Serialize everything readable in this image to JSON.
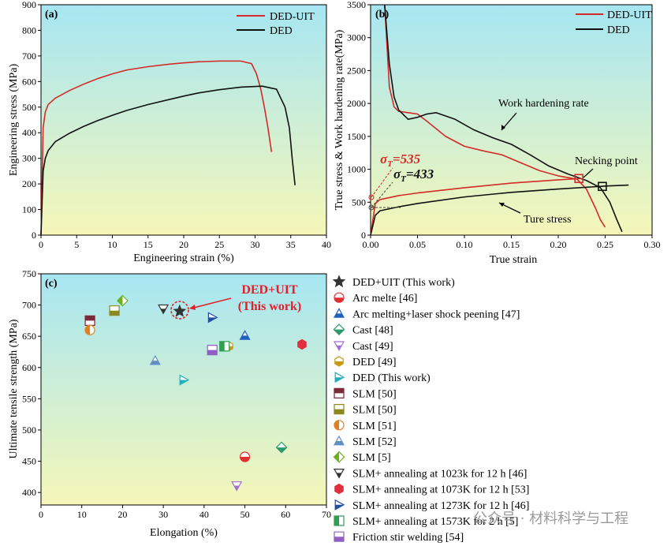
{
  "chart_data": [
    {
      "panel": "(a)",
      "type": "line",
      "xlabel": "Engineering strain (%)",
      "ylabel": "Engineering stress (MPa)",
      "xlim": [
        0,
        40
      ],
      "ylim": [
        0,
        900
      ],
      "xticks": [
        0,
        5,
        10,
        15,
        20,
        25,
        30,
        35,
        40
      ],
      "yticks": [
        0,
        100,
        200,
        300,
        400,
        500,
        600,
        700,
        800,
        900
      ],
      "legend": "top-right",
      "series": [
        {
          "name": "DED-UIT",
          "color": "#d42a2a",
          "x": [
            0,
            0.3,
            0.6,
            1,
            2,
            4,
            6,
            8,
            10,
            12,
            15,
            18,
            20,
            22,
            25,
            28,
            29.5,
            30.2,
            30.8,
            31.3,
            31.8,
            32.3
          ],
          "y": [
            0,
            420,
            480,
            510,
            535,
            565,
            590,
            612,
            630,
            645,
            658,
            668,
            673,
            677,
            680,
            680,
            670,
            630,
            570,
            500,
            420,
            325
          ]
        },
        {
          "name": "DED",
          "color": "#111111",
          "x": [
            0,
            0.3,
            0.6,
            1,
            2,
            4,
            6,
            8,
            10,
            12,
            15,
            18,
            20,
            22,
            25,
            28,
            31,
            33,
            34.2,
            34.8,
            35.2,
            35.6
          ],
          "y": [
            0,
            250,
            300,
            330,
            365,
            398,
            425,
            448,
            468,
            487,
            510,
            530,
            543,
            555,
            568,
            578,
            582,
            570,
            500,
            420,
            300,
            195
          ]
        }
      ]
    },
    {
      "panel": "(b)",
      "type": "line",
      "xlabel": "True strain",
      "ylabel": "True stress & Work hardening rate(MPa)",
      "xlim": [
        0,
        0.3
      ],
      "ylim": [
        0,
        3500
      ],
      "xticks": [
        "0.00",
        "0.05",
        "0.10",
        "0.15",
        "0.20",
        "0.25",
        "0.30"
      ],
      "yticks": [
        0,
        500,
        1000,
        1500,
        2000,
        2500,
        3000,
        3500
      ],
      "legend": "top-right",
      "series": [
        {
          "name": "DED-UIT",
          "color": "#d42a2a",
          "x": [
            0.015,
            0.02,
            0.025,
            0.03,
            0.04,
            0.05,
            0.06,
            0.08,
            0.1,
            0.12,
            0.14,
            0.16,
            0.18,
            0.2,
            0.22,
            0.23,
            0.24,
            0.245,
            0.25
          ],
          "y": [
            3500,
            2250,
            1950,
            1880,
            1860,
            1840,
            1730,
            1500,
            1350,
            1280,
            1220,
            1100,
            980,
            900,
            850,
            700,
            400,
            230,
            120
          ]
        },
        {
          "name": "DED",
          "color": "#111111",
          "x": [
            0.015,
            0.02,
            0.025,
            0.03,
            0.04,
            0.05,
            0.06,
            0.07,
            0.09,
            0.11,
            0.13,
            0.15,
            0.17,
            0.19,
            0.21,
            0.23,
            0.245,
            0.255,
            0.262,
            0.268
          ],
          "y": [
            3500,
            2600,
            2100,
            1900,
            1760,
            1790,
            1840,
            1860,
            1760,
            1600,
            1480,
            1380,
            1220,
            1050,
            930,
            830,
            720,
            500,
            250,
            50
          ]
        },
        {
          "color": "#d42a2a",
          "x": [
            0,
            0.005,
            0.01,
            0.03,
            0.05,
            0.1,
            0.15,
            0.2,
            0.225
          ],
          "y": [
            0,
            480,
            540,
            600,
            640,
            720,
            790,
            840,
            860
          ]
        },
        {
          "color": "#111111",
          "x": [
            0,
            0.005,
            0.01,
            0.03,
            0.05,
            0.1,
            0.15,
            0.2,
            0.25,
            0.275
          ],
          "y": [
            0,
            300,
            370,
            430,
            480,
            580,
            650,
            700,
            745,
            760
          ]
        }
      ],
      "markers": [
        {
          "x": 0.222,
          "y": 860,
          "color": "#d42a2a"
        },
        {
          "x": 0.247,
          "y": 740,
          "color": "#111111"
        }
      ],
      "sigma_labels": [
        {
          "symbol": "σ",
          "sub": "T",
          "value": "=535",
          "color": "#d42a2a"
        },
        {
          "symbol": "σ",
          "sub": "T",
          "value": "=433",
          "color": "#111111"
        }
      ],
      "annotations": [
        "Work hardening rate",
        "Necking point",
        "Ture stress"
      ]
    },
    {
      "panel": "(c)",
      "type": "scatter",
      "xlabel": "Elongation (%)",
      "ylabel": "Ultimate tensile strength (MPa)",
      "xlim": [
        0,
        70
      ],
      "ylim": [
        380,
        750
      ],
      "xticks": [
        0,
        10,
        20,
        30,
        40,
        50,
        60,
        70
      ],
      "yticks": [
        400,
        450,
        500,
        550,
        600,
        650,
        700,
        750
      ],
      "callout": [
        "DED+UIT",
        "(This work)"
      ],
      "legend": "right",
      "series": [
        {
          "name": "DED+UIT (This work)",
          "marker": "star",
          "color": "#333333",
          "points": [
            [
              34,
              690
            ]
          ]
        },
        {
          "name": "Arc melte [46]",
          "marker": "circle-half-bottom",
          "color": "#e03030",
          "points": [
            [
              50,
              457
            ]
          ]
        },
        {
          "name": "Arc melting+laser shock peening [47]",
          "marker": "triangle-half",
          "color": "#2060c0",
          "points": [
            [
              50,
              651
            ]
          ]
        },
        {
          "name": "Cast [48]",
          "marker": "diamond-half",
          "color": "#2a9a6a",
          "points": [
            [
              59,
              472
            ]
          ]
        },
        {
          "name": "Cast [49]",
          "marker": "triangle-down-half",
          "color": "#a070d0",
          "points": [
            [
              48,
              411
            ]
          ]
        },
        {
          "name": "DED [49]",
          "marker": "hexagon-half",
          "color": "#c89a10",
          "points": [
            [
              46,
              634
            ]
          ]
        },
        {
          "name": "DED (This work)",
          "marker": "triangle-right-half",
          "color": "#20b0c0",
          "points": [
            [
              35,
              580
            ]
          ]
        },
        {
          "name": "SLM [50]",
          "marker": "square-half-top",
          "color": "#7a2a3a",
          "points": [
            [
              12,
              675
            ]
          ]
        },
        {
          "name": "SLM [50]",
          "marker": "square-half-bottom",
          "color": "#8a8a20",
          "points": [
            [
              18,
              691
            ]
          ]
        },
        {
          "name": "SLM [51]",
          "marker": "circle-half-left",
          "color": "#e08020",
          "points": [
            [
              12,
              660
            ]
          ]
        },
        {
          "name": "SLM [52]",
          "marker": "triangle-half",
          "color": "#6090c0",
          "points": [
            [
              28,
              611
            ]
          ]
        },
        {
          "name": "SLM [5]",
          "marker": "diamond-half-left",
          "color": "#70b020",
          "points": [
            [
              20,
              707
            ]
          ]
        },
        {
          "name": "SLM+ annealing at 1023k for 12 h [46]",
          "marker": "triangle-down-half",
          "color": "#333333",
          "points": [
            [
              30,
              694
            ]
          ]
        },
        {
          "name": "SLM+ annealing at 1073K for 12 h [53]",
          "marker": "hexagon",
          "color": "#e03040",
          "points": [
            [
              64,
              637
            ]
          ]
        },
        {
          "name": "SLM+ annealing at 1273K for 12 h [46]",
          "marker": "triangle-right-half",
          "color": "#2050a0",
          "points": [
            [
              42,
              680
            ]
          ]
        },
        {
          "name": "SLM+ annealing at 1573K for 2 h [5]",
          "marker": "square-half-left",
          "color": "#30a050",
          "points": [
            [
              45,
              634
            ]
          ]
        },
        {
          "name": "Friction stir welding [54]",
          "marker": "square-half-bottom",
          "color": "#9060c0",
          "points": [
            [
              42,
              628
            ]
          ]
        }
      ]
    }
  ],
  "watermark": "公众号 · 材料科学与工程"
}
